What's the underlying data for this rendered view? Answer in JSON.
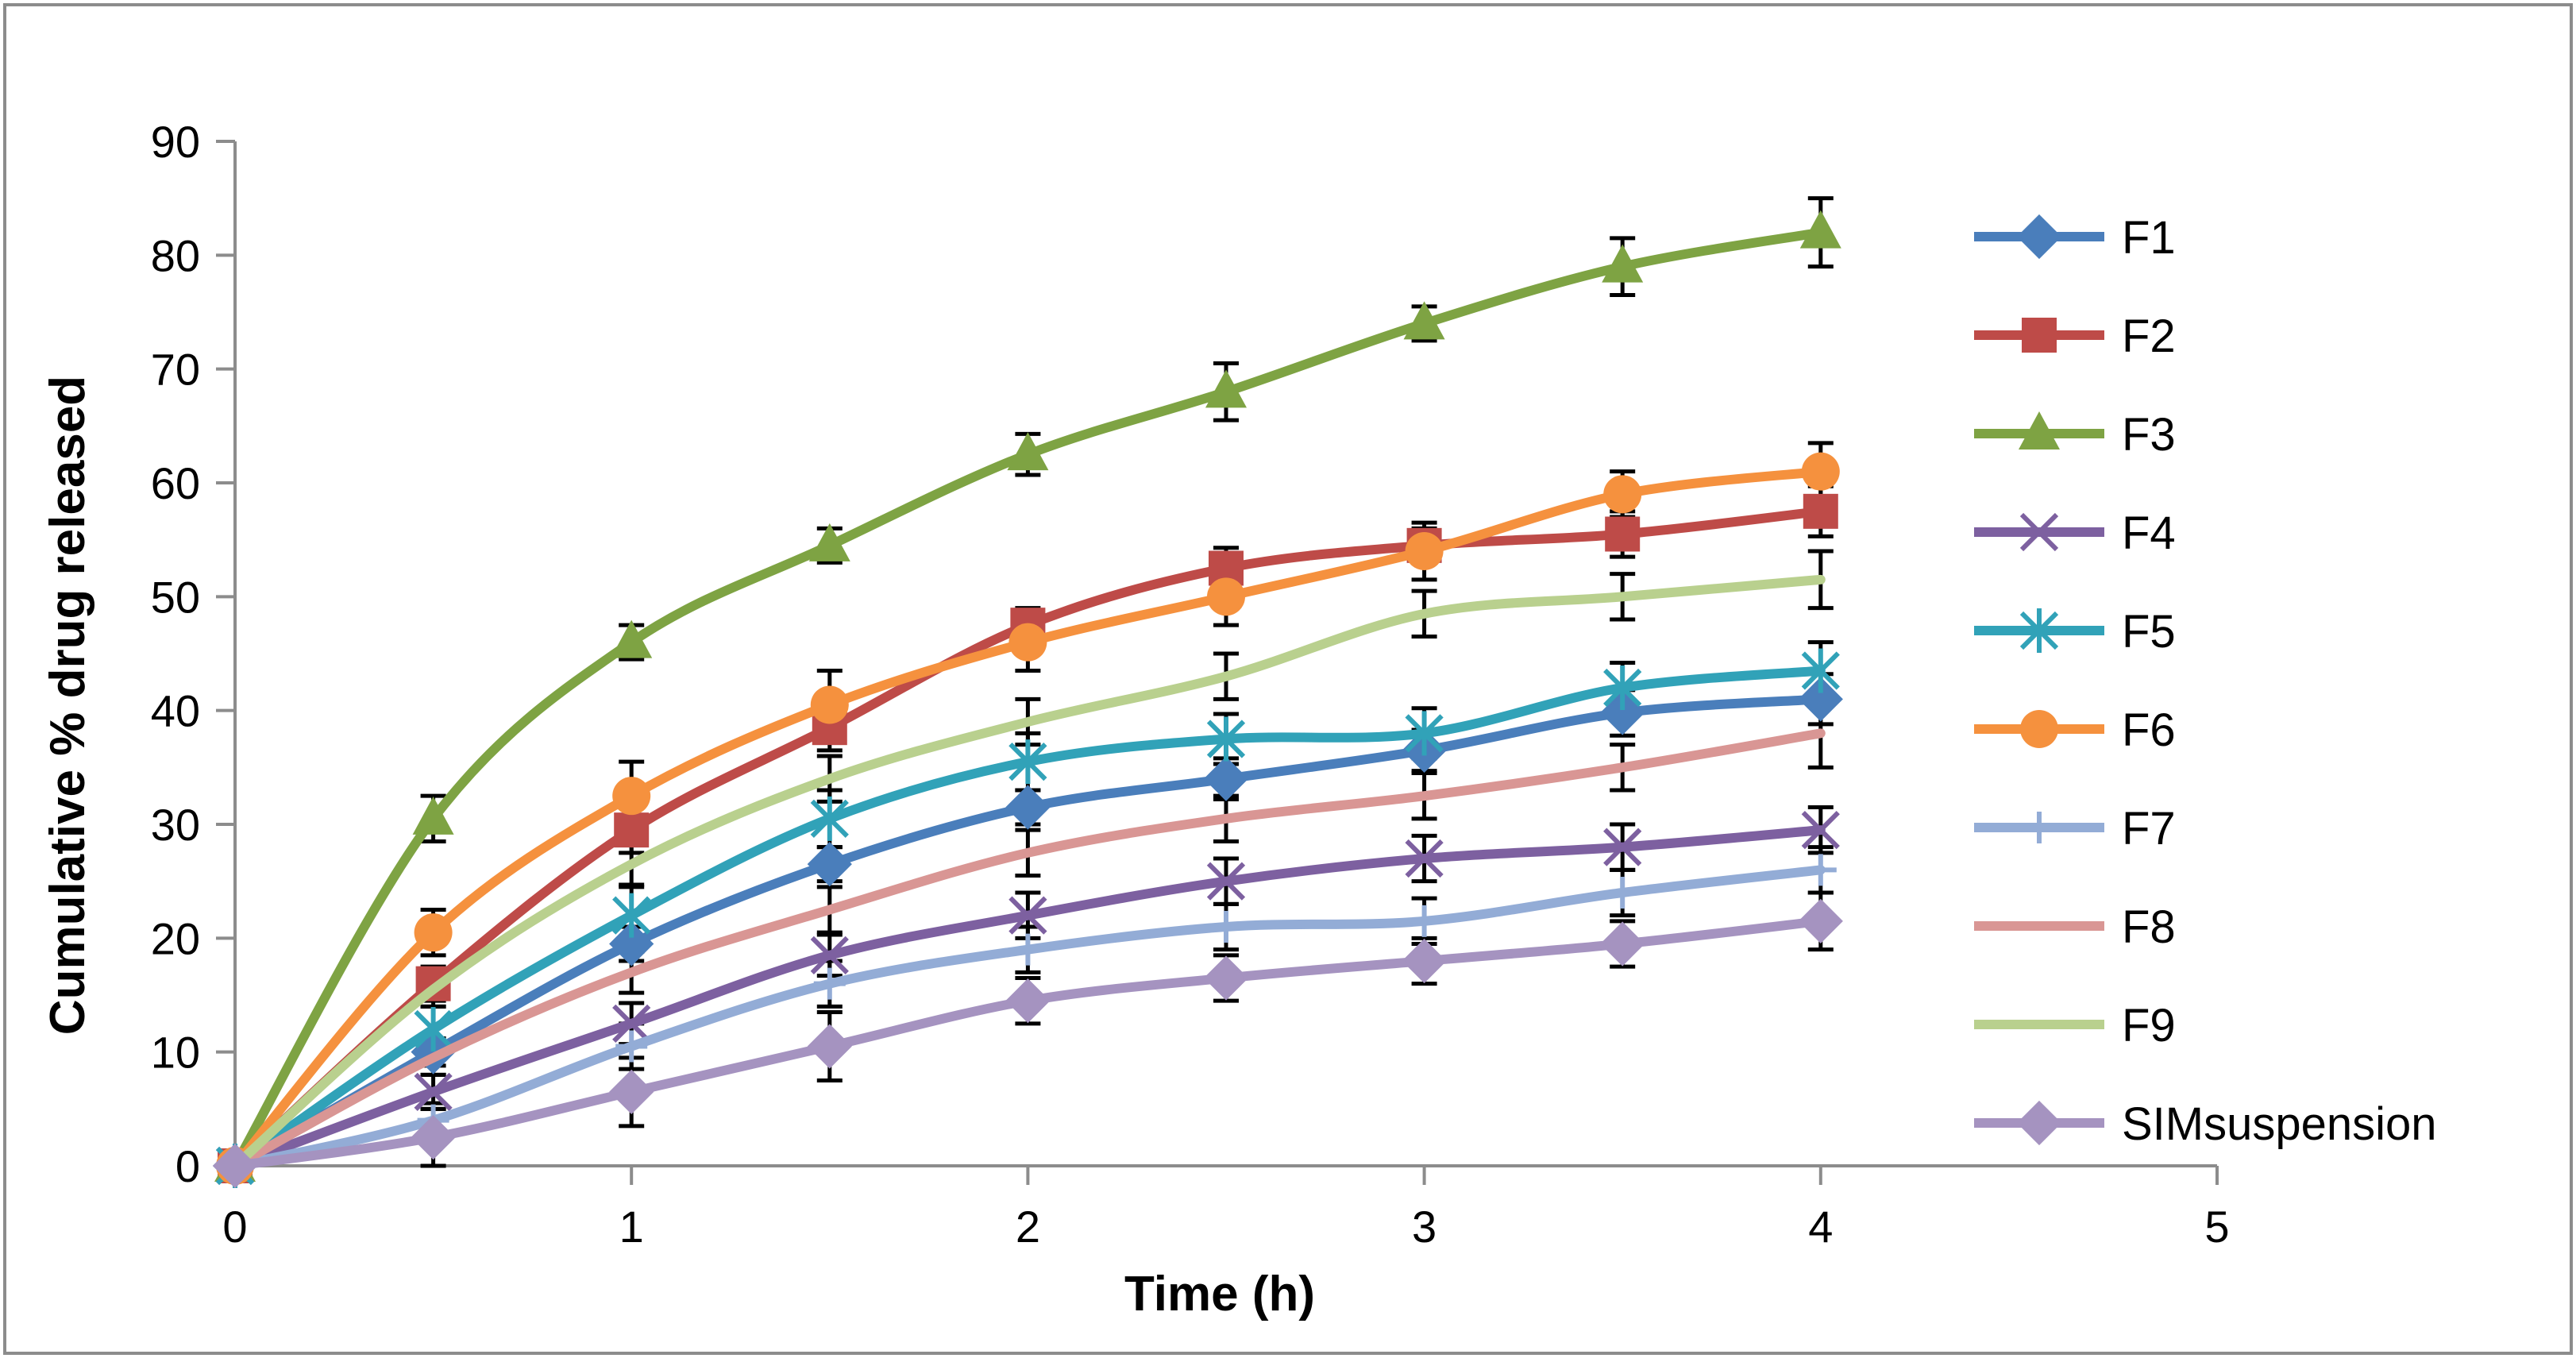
{
  "chart_data": {
    "type": "line",
    "title": "",
    "xlabel": "Time (h)",
    "ylabel": "Cumulative % drug released",
    "xlim": [
      0,
      5
    ],
    "ylim": [
      0,
      90
    ],
    "xticks": [
      "0",
      "1",
      "2",
      "3",
      "4",
      "5"
    ],
    "yticks": [
      "0",
      "10",
      "20",
      "30",
      "40",
      "50",
      "60",
      "70",
      "80",
      "90"
    ],
    "grid": false,
    "legend_position": "right",
    "x": [
      0,
      0.5,
      1,
      1.5,
      2,
      2.5,
      3,
      3.5,
      4
    ],
    "series": [
      {
        "name": "F1",
        "color": "#4a7ebb",
        "marker": "diamond",
        "values": [
          0,
          10,
          19.5,
          26.5,
          31.5,
          34,
          36.5,
          39.8,
          41
        ],
        "errors": [
          0,
          1.2,
          1.5,
          1.5,
          1.5,
          1.8,
          1.8,
          2,
          2.2
        ]
      },
      {
        "name": "F2",
        "color": "#be4b48",
        "marker": "square",
        "values": [
          0,
          16,
          29.5,
          38.5,
          47.5,
          52.5,
          54.5,
          55.5,
          57.5
        ],
        "errors": [
          0,
          1.5,
          2,
          2,
          1.5,
          1.8,
          1.5,
          2,
          2.2
        ]
      },
      {
        "name": "F3",
        "color": "#7ea343",
        "marker": "triangle",
        "values": [
          0,
          30.5,
          46,
          54.5,
          62.5,
          68,
          74,
          79,
          82
        ],
        "errors": [
          0,
          2,
          1.5,
          1.5,
          1.8,
          2.5,
          1.5,
          2.5,
          3
        ]
      },
      {
        "name": "F4",
        "color": "#7d60a0",
        "marker": "x",
        "values": [
          0,
          6.5,
          12.5,
          18.5,
          22,
          25,
          27,
          28,
          29.5
        ],
        "errors": [
          0,
          1.5,
          1.8,
          1.8,
          2,
          2,
          2,
          2,
          2
        ]
      },
      {
        "name": "F5",
        "color": "#31a2b8",
        "marker": "star",
        "values": [
          0,
          12,
          22,
          30.5,
          35.5,
          37.5,
          38,
          42,
          43.5
        ],
        "errors": [
          0,
          2,
          2.5,
          2.5,
          2.5,
          2.2,
          2.2,
          2.2,
          2.5
        ]
      },
      {
        "name": "F6",
        "color": "#f5913e",
        "marker": "circle",
        "values": [
          0,
          20.5,
          32.5,
          40.5,
          46,
          50,
          54,
          59,
          61
        ],
        "errors": [
          0,
          2,
          3,
          3,
          2.5,
          2.5,
          2.5,
          2,
          2.5
        ]
      },
      {
        "name": "F7",
        "color": "#93acd6",
        "marker": "plus",
        "values": [
          0,
          4,
          10.5,
          16,
          19,
          21,
          21.5,
          24,
          26
        ],
        "errors": [
          0,
          1.5,
          2,
          2,
          2,
          2,
          2,
          2,
          2
        ]
      },
      {
        "name": "F8",
        "color": "#d99694",
        "marker": "none",
        "values": [
          0,
          9.5,
          17,
          22.5,
          27.5,
          30.5,
          32.5,
          35,
          38
        ],
        "errors": [
          0,
          1.5,
          1.8,
          2,
          2,
          2,
          2,
          2,
          3
        ]
      },
      {
        "name": "F9",
        "color": "#b9d08e",
        "marker": "none",
        "values": [
          0,
          15.5,
          26.5,
          34,
          39,
          43,
          48.5,
          50,
          51.5
        ],
        "errors": [
          0,
          1.5,
          1.8,
          2,
          2,
          2,
          2,
          2,
          2.5
        ]
      },
      {
        "name": "SIMsuspension",
        "color": "#a593c0",
        "marker": "diamond",
        "values": [
          0,
          2.5,
          6.5,
          10.5,
          14.5,
          16.5,
          18,
          19.5,
          21.5
        ],
        "errors": [
          0,
          2.5,
          3,
          3,
          2,
          2,
          2,
          2,
          2.5
        ]
      }
    ]
  }
}
